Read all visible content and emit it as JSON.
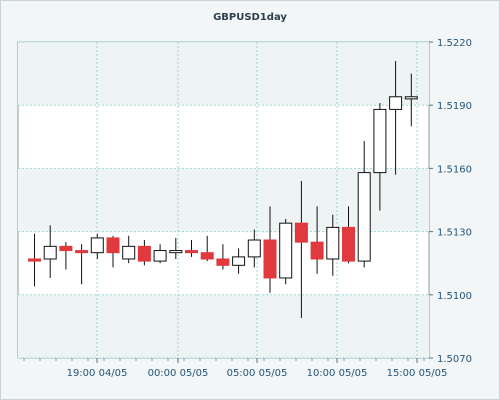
{
  "chart_data": {
    "type": "candlestick",
    "title": "GBPUSD1day",
    "xlabel": "",
    "ylabel": "",
    "ylim": [
      1.507,
      1.522
    ],
    "y_ticks": [
      "1.5070",
      "1.5100",
      "1.5130",
      "1.5160",
      "1.5190",
      "1.5220"
    ],
    "x_ticks": [
      "19:00 04/05",
      "00:00 05/05",
      "05:00 05/05",
      "10:00 05/05",
      "15:00 05/05"
    ],
    "grid": true,
    "bullish_color": "#ffffff",
    "bearish_color": "#e0393e",
    "candles": [
      {
        "open": 1.5117,
        "close": 1.5116,
        "high": 1.5129,
        "low": 1.5104
      },
      {
        "open": 1.5117,
        "close": 1.5123,
        "high": 1.5133,
        "low": 1.5108
      },
      {
        "open": 1.5123,
        "close": 1.5121,
        "high": 1.5125,
        "low": 1.5112
      },
      {
        "open": 1.5121,
        "close": 1.512,
        "high": 1.5124,
        "low": 1.5105
      },
      {
        "open": 1.512,
        "close": 1.5127,
        "high": 1.5129,
        "low": 1.5117
      },
      {
        "open": 1.5127,
        "close": 1.512,
        "high": 1.5128,
        "low": 1.5113
      },
      {
        "open": 1.5117,
        "close": 1.5123,
        "high": 1.5128,
        "low": 1.5115
      },
      {
        "open": 1.5123,
        "close": 1.5116,
        "high": 1.5126,
        "low": 1.5114
      },
      {
        "open": 1.5116,
        "close": 1.5121,
        "high": 1.5124,
        "low": 1.5115
      },
      {
        "open": 1.512,
        "close": 1.5121,
        "high": 1.5127,
        "low": 1.5117
      },
      {
        "open": 1.5121,
        "close": 1.512,
        "high": 1.5126,
        "low": 1.5118
      },
      {
        "open": 1.512,
        "close": 1.5117,
        "high": 1.5128,
        "low": 1.5116
      },
      {
        "open": 1.5117,
        "close": 1.5114,
        "high": 1.5124,
        "low": 1.5112
      },
      {
        "open": 1.5114,
        "close": 1.5118,
        "high": 1.5122,
        "low": 1.511
      },
      {
        "open": 1.5118,
        "close": 1.5126,
        "high": 1.5131,
        "low": 1.5113
      },
      {
        "open": 1.5126,
        "close": 1.5108,
        "high": 1.5142,
        "low": 1.5101
      },
      {
        "open": 1.5108,
        "close": 1.5134,
        "high": 1.5136,
        "low": 1.5105
      },
      {
        "open": 1.5134,
        "close": 1.5125,
        "high": 1.5154,
        "low": 1.5089
      },
      {
        "open": 1.5125,
        "close": 1.5117,
        "high": 1.5142,
        "low": 1.511
      },
      {
        "open": 1.5117,
        "close": 1.5132,
        "high": 1.5138,
        "low": 1.5109
      },
      {
        "open": 1.5132,
        "close": 1.5116,
        "high": 1.5142,
        "low": 1.5115
      },
      {
        "open": 1.5116,
        "close": 1.5158,
        "high": 1.5173,
        "low": 1.5113
      },
      {
        "open": 1.5158,
        "close": 1.5188,
        "high": 1.5191,
        "low": 1.514
      },
      {
        "open": 1.5188,
        "close": 1.5194,
        "high": 1.5211,
        "low": 1.5157
      },
      {
        "open": 1.5193,
        "close": 1.5194,
        "high": 1.5205,
        "low": 1.518
      }
    ]
  }
}
